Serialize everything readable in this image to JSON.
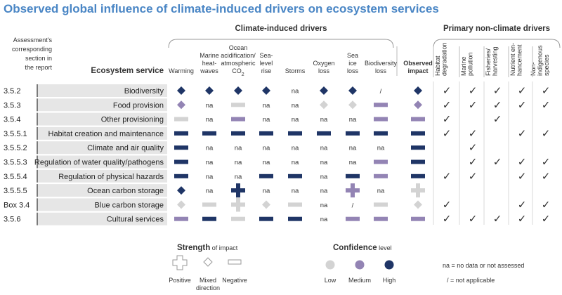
{
  "title": "Observed global influence of climate-induced drivers on ecosystem services",
  "colors": {
    "low": "#d3d3d3",
    "medium": "#9384b4",
    "high": "#1f3566",
    "title": "#4a86c5"
  },
  "chart_data": {
    "type": "table",
    "assessment_header": [
      "Assessment's",
      "corresponding",
      "section in",
      "the report"
    ],
    "service_header": "Ecosystem service",
    "climate_group_label": "Climate-induced drivers",
    "nonclimate_group_label": "Primary non-climate drivers",
    "climate_columns": [
      [
        "Warming"
      ],
      [
        "Marine",
        "heat-",
        "waves"
      ],
      [
        "Ocean",
        "acidification/",
        "atmospheric",
        "CO2"
      ],
      [
        "Sea-",
        "level",
        "rise"
      ],
      [
        "Storms"
      ],
      [
        "Oxygen",
        "loss"
      ],
      [
        "Sea",
        "ice",
        "loss"
      ],
      [
        "Biodiversity",
        "loss"
      ],
      [
        "Observed",
        "impact"
      ]
    ],
    "nonclimate_columns": [
      [
        "Habitat",
        "degradation"
      ],
      [
        "Marine",
        "pollution"
      ],
      [
        "Fisheries/",
        "harvesting"
      ],
      [
        "Nutrient en-",
        "hancement"
      ],
      [
        "Non-",
        "indigenous",
        "species"
      ]
    ],
    "rows": [
      {
        "section": "3.5.2",
        "service": "Biodiversity",
        "cells": [
          "mixed-high",
          "mixed-high",
          "mixed-high",
          "mixed-high",
          "na",
          "mixed-high",
          "mixed-high",
          "/",
          "mixed-high"
        ],
        "nonclimate": [
          1,
          1,
          1,
          1,
          1
        ]
      },
      {
        "section": "3.5.3",
        "service": "Food provision",
        "cells": [
          "mixed-medium",
          "na",
          "neg-low",
          "na",
          "na",
          "mixed-low",
          "mixed-low",
          "neg-medium",
          "mixed-medium"
        ],
        "nonclimate": [
          1,
          1,
          1,
          1,
          1
        ]
      },
      {
        "section": "3.5.4",
        "service": "Other provisioning",
        "cells": [
          "neg-low",
          "na",
          "neg-medium",
          "na",
          "na",
          "na",
          "na",
          "neg-medium",
          "neg-medium"
        ],
        "nonclimate": [
          1,
          0,
          1,
          0,
          0
        ]
      },
      {
        "section": "3.5.5.1",
        "service": "Habitat creation and maintenance",
        "cells": [
          "neg-high",
          "neg-high",
          "neg-high",
          "neg-high",
          "neg-high",
          "neg-high",
          "neg-high",
          "neg-high",
          "neg-high"
        ],
        "nonclimate": [
          1,
          1,
          0,
          1,
          1
        ]
      },
      {
        "section": "3.5.5.2",
        "service": "Climate and air quality",
        "cells": [
          "neg-high",
          "na",
          "na",
          "na",
          "na",
          "na",
          "na",
          "na",
          "neg-high"
        ],
        "nonclimate": [
          0,
          1,
          0,
          0,
          0
        ]
      },
      {
        "section": "3.5.5.3",
        "service": "Regulation of water quality/pathogens",
        "cells": [
          "neg-high",
          "na",
          "na",
          "na",
          "na",
          "na",
          "na",
          "neg-medium",
          "neg-high"
        ],
        "nonclimate": [
          0,
          1,
          1,
          1,
          1
        ]
      },
      {
        "section": "3.5.5.4",
        "service": "Regulation of physical hazards",
        "cells": [
          "neg-high",
          "na",
          "na",
          "neg-high",
          "neg-high",
          "na",
          "neg-high",
          "neg-medium",
          "neg-high"
        ],
        "nonclimate": [
          1,
          1,
          0,
          1,
          1
        ]
      },
      {
        "section": "3.5.5.5",
        "service": "Ocean carbon storage",
        "cells": [
          "mixed-high",
          "na",
          "pos-high",
          "na",
          "na",
          "na",
          "pos-medium",
          "na",
          "pos-low"
        ],
        "nonclimate": [
          0,
          0,
          0,
          0,
          0
        ]
      },
      {
        "section": "Box 3.4",
        "service": "Blue carbon storage",
        "cells": [
          "mixed-low",
          "neg-low",
          "pos-low",
          "mixed-low",
          "neg-low",
          "na",
          "/",
          "neg-low",
          "mixed-low"
        ],
        "nonclimate": [
          1,
          0,
          0,
          1,
          1
        ]
      },
      {
        "section": "3.5.6",
        "service": "Cultural services",
        "cells": [
          "neg-medium",
          "neg-high",
          "neg-low",
          "neg-high",
          "neg-high",
          "na",
          "neg-medium",
          "neg-medium",
          "neg-medium"
        ],
        "nonclimate": [
          1,
          1,
          1,
          1,
          1
        ]
      }
    ],
    "legend": {
      "strength_title": "Strength",
      "strength_suffix": " of impact",
      "strength_items": [
        "Positive",
        "Mixed",
        "direction",
        "Negative"
      ],
      "confidence_title": "Confidence",
      "confidence_suffix": " level",
      "confidence_items": [
        "Low",
        "Medium",
        "High"
      ],
      "notes": [
        "na  = no data or not assessed",
        "/   = not applicable"
      ]
    }
  }
}
